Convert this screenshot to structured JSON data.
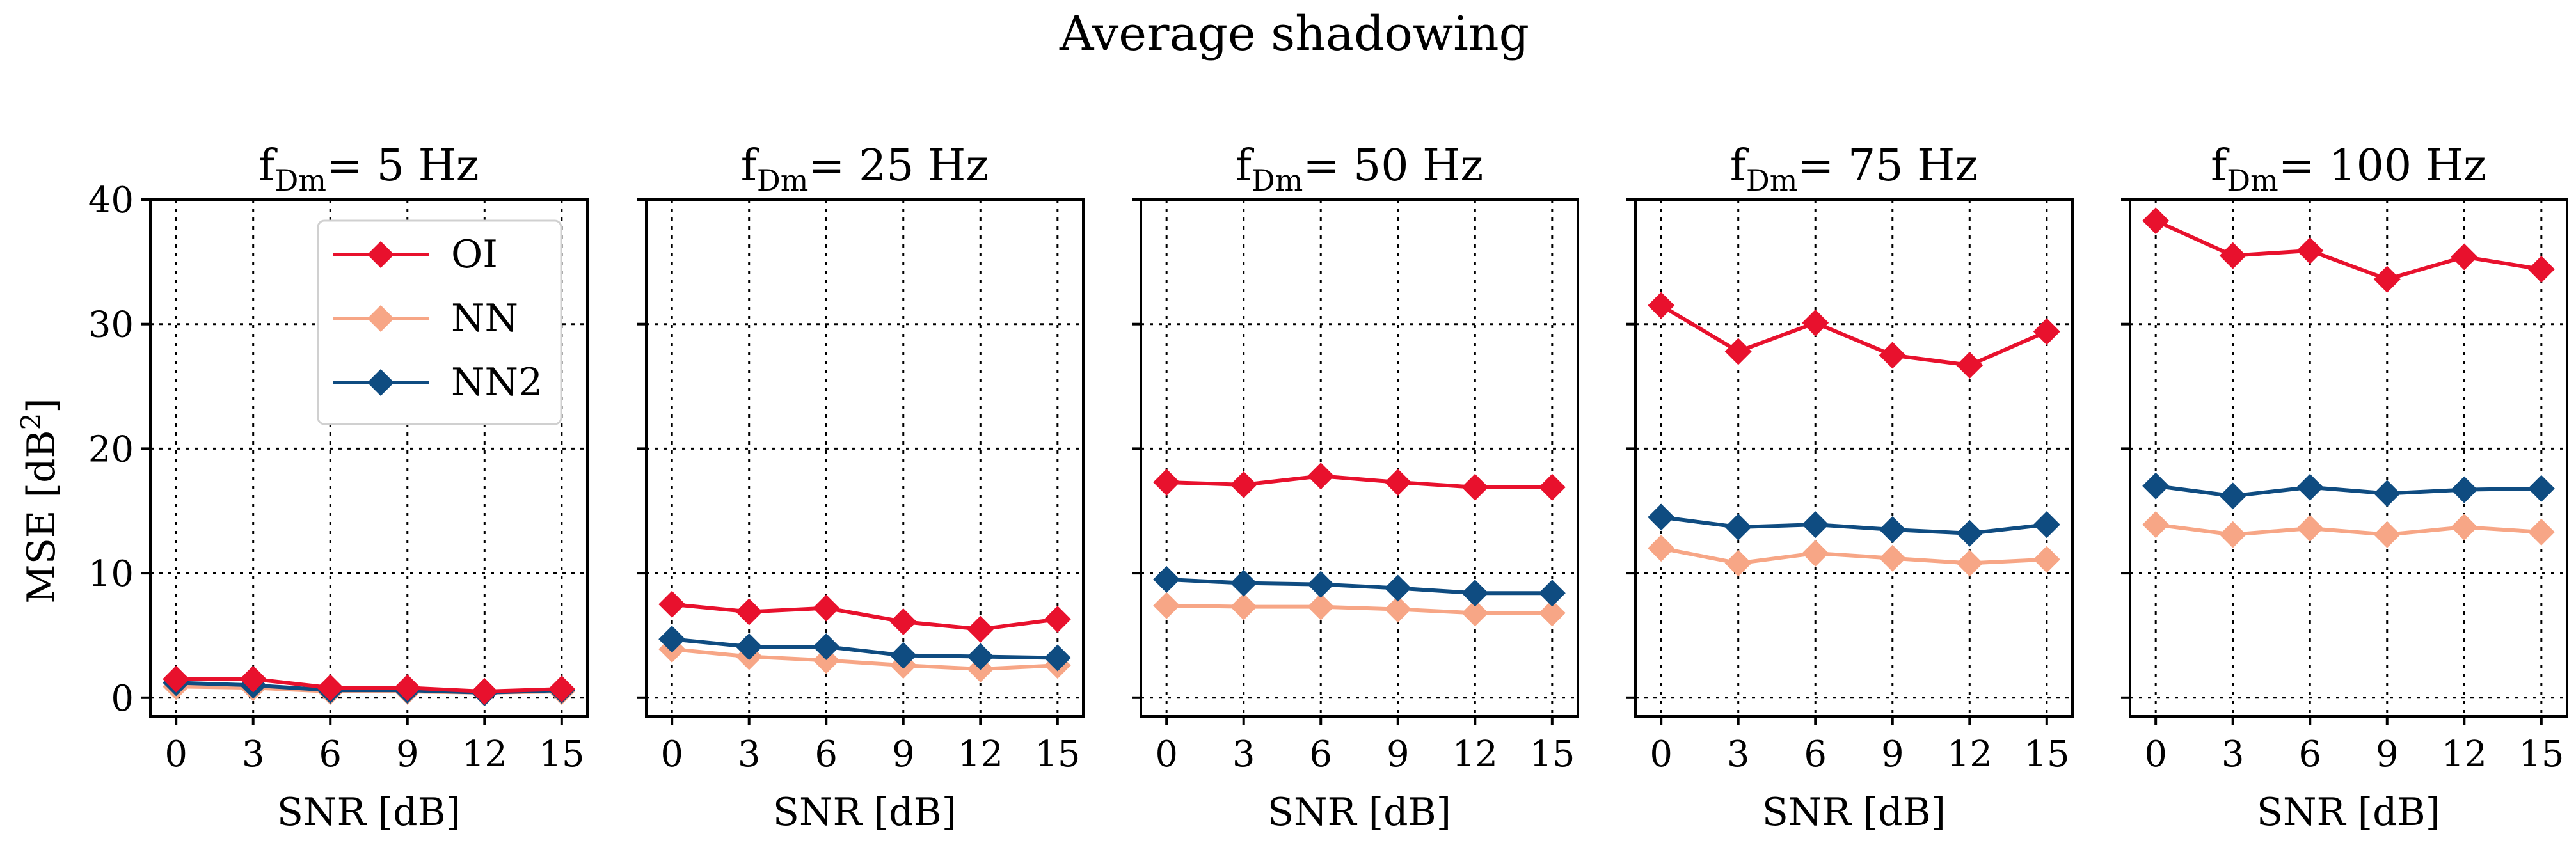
{
  "chart_data": {
    "type": "line",
    "title": "Average shadowing",
    "xlabel": "SNR [dB]",
    "ylabel_main": "MSE [dB",
    "ylabel_sup": "2",
    "ylabel_end": "]",
    "x": [
      0,
      3,
      6,
      9,
      12,
      15
    ],
    "xticks": [
      "0",
      "3",
      "6",
      "9",
      "12",
      "15"
    ],
    "yticks": [
      "0",
      "10",
      "20",
      "30",
      "40"
    ],
    "ylim": [
      -1.5,
      40
    ],
    "xlim": [
      -1,
      16
    ],
    "grid": true,
    "legend_position": "top-right of first panel",
    "legend": [
      "OI",
      "NN",
      "NN2"
    ],
    "colors": {
      "OI": "#e8112d",
      "NN": "#f7a686",
      "NN2": "#0f4c81"
    },
    "panels": [
      {
        "title_prefix": "f",
        "title_sub": "Dm",
        "title_suffix": "= 5 Hz",
        "series": [
          {
            "name": "OI",
            "values": [
              1.5,
              1.5,
              0.8,
              0.8,
              0.5,
              0.7
            ]
          },
          {
            "name": "NN",
            "values": [
              0.9,
              0.8,
              0.5,
              0.5,
              0.4,
              0.5
            ]
          },
          {
            "name": "NN2",
            "values": [
              1.2,
              1.0,
              0.6,
              0.6,
              0.4,
              0.6
            ]
          }
        ]
      },
      {
        "title_prefix": "f",
        "title_sub": "Dm",
        "title_suffix": "= 25 Hz",
        "series": [
          {
            "name": "OI",
            "values": [
              7.5,
              6.9,
              7.2,
              6.1,
              5.5,
              6.3
            ]
          },
          {
            "name": "NN",
            "values": [
              3.9,
              3.3,
              3.0,
              2.6,
              2.3,
              2.6
            ]
          },
          {
            "name": "NN2",
            "values": [
              4.7,
              4.1,
              4.1,
              3.4,
              3.3,
              3.2
            ]
          }
        ]
      },
      {
        "title_prefix": "f",
        "title_sub": "Dm",
        "title_suffix": "= 50 Hz",
        "series": [
          {
            "name": "OI",
            "values": [
              17.3,
              17.1,
              17.8,
              17.3,
              16.9,
              16.9
            ]
          },
          {
            "name": "NN",
            "values": [
              7.4,
              7.3,
              7.3,
              7.1,
              6.8,
              6.8
            ]
          },
          {
            "name": "NN2",
            "values": [
              9.5,
              9.2,
              9.1,
              8.8,
              8.4,
              8.4
            ]
          }
        ]
      },
      {
        "title_prefix": "f",
        "title_sub": "Dm",
        "title_suffix": "= 75 Hz",
        "series": [
          {
            "name": "OI",
            "values": [
              31.5,
              27.8,
              30.1,
              27.5,
              26.7,
              29.4
            ]
          },
          {
            "name": "NN",
            "values": [
              12.0,
              10.8,
              11.6,
              11.2,
              10.8,
              11.1
            ]
          },
          {
            "name": "NN2",
            "values": [
              14.5,
              13.7,
              13.9,
              13.5,
              13.2,
              13.9
            ]
          }
        ]
      },
      {
        "title_prefix": "f",
        "title_sub": "Dm",
        "title_suffix": "= 100 Hz",
        "series": [
          {
            "name": "OI",
            "values": [
              38.3,
              35.5,
              35.9,
              33.6,
              35.4,
              34.4
            ]
          },
          {
            "name": "NN",
            "values": [
              13.9,
              13.1,
              13.6,
              13.1,
              13.7,
              13.3
            ]
          },
          {
            "name": "NN2",
            "values": [
              17.0,
              16.2,
              16.9,
              16.4,
              16.7,
              16.8
            ]
          }
        ]
      }
    ]
  }
}
